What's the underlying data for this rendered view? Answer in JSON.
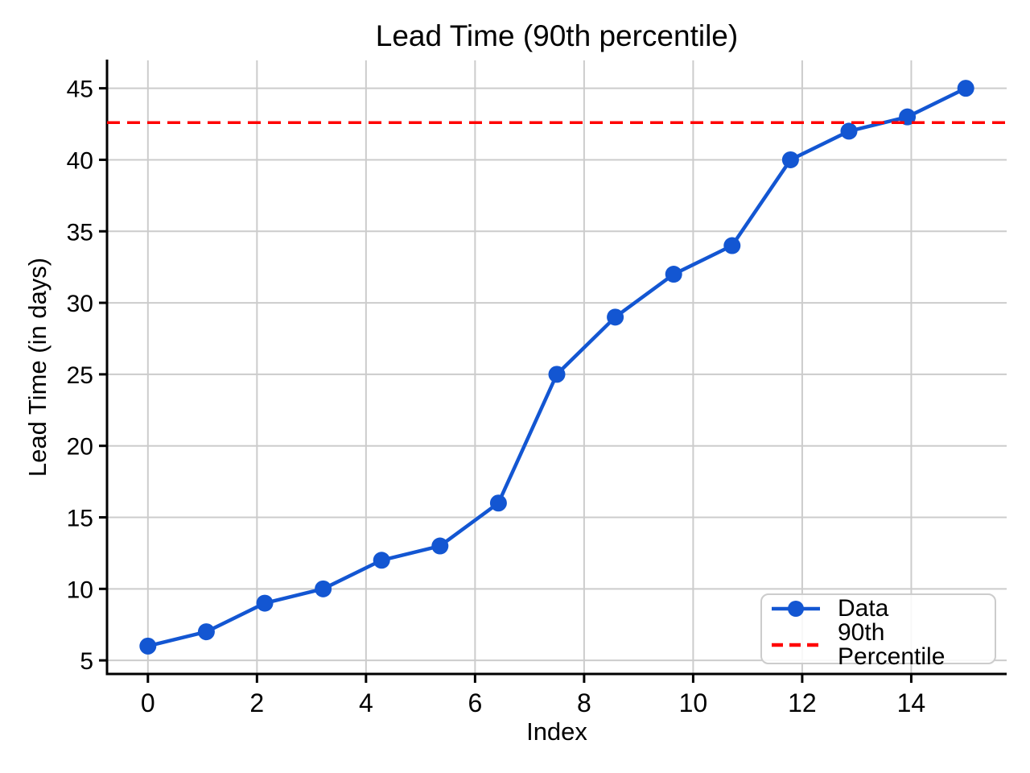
{
  "chart_data": {
    "type": "line",
    "title": "Lead Time (90th percentile)",
    "xlabel": "Index",
    "ylabel": "Lead Time (in days)",
    "series": [
      {
        "name": "Data",
        "color": "#1356d2",
        "marker": "circle",
        "x": [
          0,
          1.0714,
          2.1429,
          3.2143,
          4.2857,
          5.3571,
          6.4286,
          7.5,
          8.5714,
          9.6429,
          10.7143,
          11.7857,
          12.8571,
          13.9286,
          15
        ],
        "y": [
          6,
          7,
          9,
          10,
          12,
          13,
          16,
          25,
          29,
          32,
          34,
          40,
          42,
          43,
          45
        ]
      }
    ],
    "reference_line": {
      "name": "90th Percentile",
      "value": 42.6,
      "color": "#ff0000",
      "style": "dashed"
    },
    "axes": {
      "xticks": [
        0,
        2,
        4,
        6,
        8,
        10,
        12,
        14
      ],
      "yticks": [
        5,
        10,
        15,
        20,
        25,
        30,
        35,
        40,
        45
      ],
      "xlim": [
        -0.75,
        15.75
      ],
      "ylim": [
        4.05,
        46.95
      ],
      "grid": true,
      "grid_color": "#cccccc",
      "spine_color": "#000000",
      "text_color": "#000000"
    },
    "legend": {
      "position": "lower right",
      "entries": [
        "Data",
        "90th Percentile"
      ]
    }
  }
}
